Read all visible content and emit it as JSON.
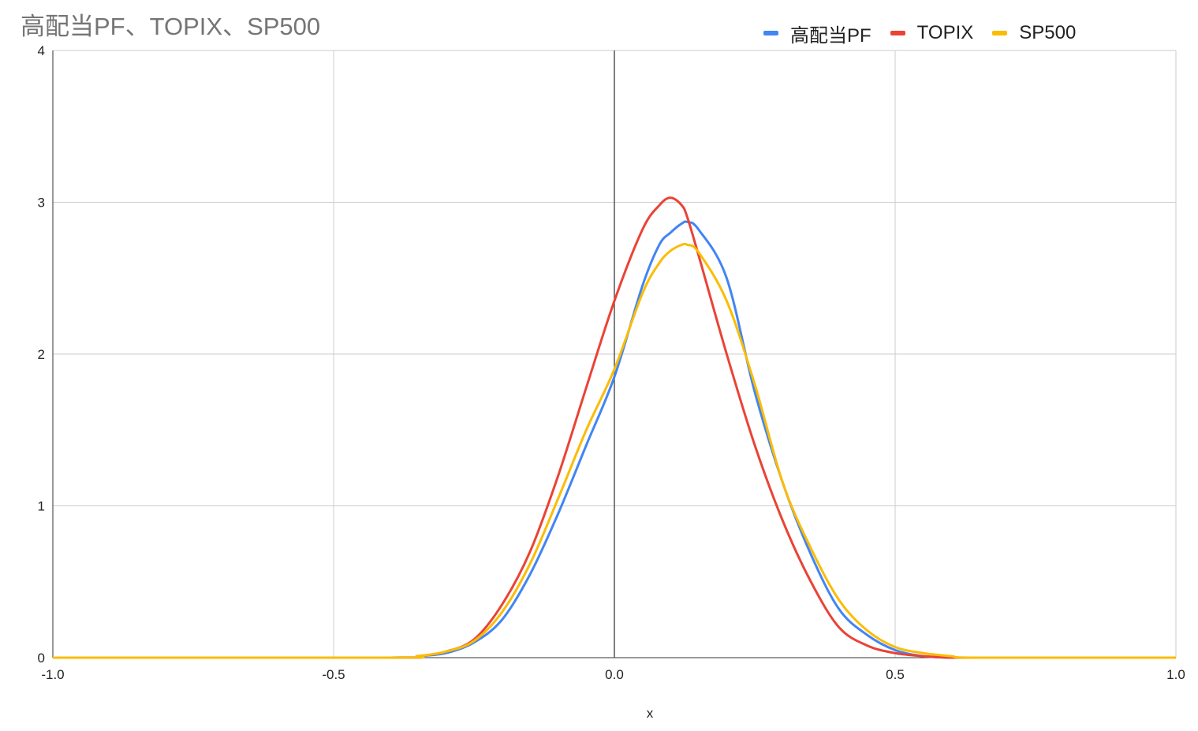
{
  "chart": {
    "title": "高配当PF、TOPIX、SP500",
    "xlabel": "x"
  },
  "chart_data": {
    "type": "line",
    "title": "高配当PF、TOPIX、SP500",
    "xlabel": "x",
    "ylabel": "",
    "xlim": [
      -1.0,
      1.0
    ],
    "ylim": [
      0,
      4
    ],
    "x_ticks": [
      "-1.0",
      "-0.5",
      "0.0",
      "0.5",
      "1.0"
    ],
    "y_ticks": [
      "0",
      "1",
      "2",
      "3",
      "4"
    ],
    "grid": true,
    "legend_position": "top-right",
    "x": [
      -1.0,
      -0.4,
      -0.35,
      -0.3,
      -0.25,
      -0.2,
      -0.15,
      -0.1,
      -0.05,
      0.0,
      0.05,
      0.08,
      0.1,
      0.12,
      0.13,
      0.15,
      0.2,
      0.25,
      0.3,
      0.35,
      0.4,
      0.45,
      0.5,
      0.55,
      0.6,
      0.65,
      1.0
    ],
    "series": [
      {
        "name": "高配当PF",
        "color": "#4285f4",
        "values": [
          0,
          0,
          0.01,
          0.03,
          0.1,
          0.25,
          0.55,
          0.95,
          1.4,
          1.85,
          2.45,
          2.72,
          2.8,
          2.86,
          2.87,
          2.82,
          2.5,
          1.75,
          1.15,
          0.68,
          0.32,
          0.15,
          0.05,
          0.01,
          0,
          0,
          0
        ]
      },
      {
        "name": "TOPIX",
        "color": "#ea4335",
        "values": [
          0,
          0,
          0.01,
          0.04,
          0.12,
          0.35,
          0.7,
          1.2,
          1.78,
          2.35,
          2.82,
          2.98,
          3.03,
          2.98,
          2.9,
          2.65,
          2.0,
          1.4,
          0.9,
          0.5,
          0.2,
          0.08,
          0.03,
          0.01,
          0,
          0,
          0
        ]
      },
      {
        "name": "SP500",
        "color": "#fbbc04",
        "values": [
          0,
          0,
          0.01,
          0.04,
          0.11,
          0.3,
          0.62,
          1.05,
          1.5,
          1.9,
          2.4,
          2.6,
          2.68,
          2.72,
          2.72,
          2.67,
          2.35,
          1.8,
          1.15,
          0.72,
          0.38,
          0.18,
          0.07,
          0.03,
          0.01,
          0,
          0
        ]
      }
    ]
  }
}
